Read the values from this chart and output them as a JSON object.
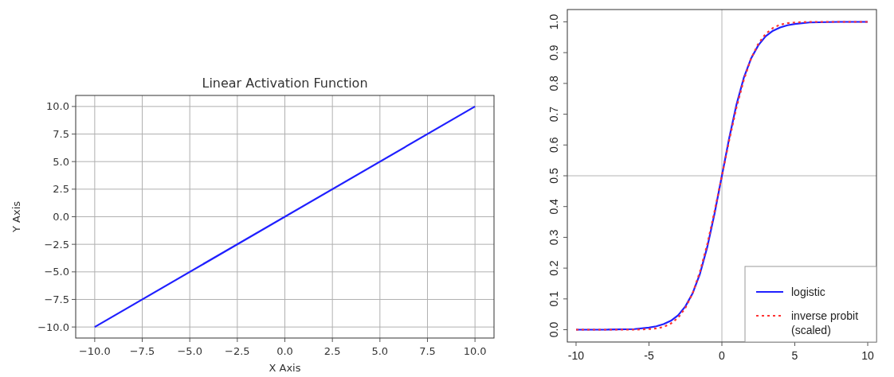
{
  "chart_data": [
    {
      "type": "line",
      "title": "Linear Activation Function",
      "xlabel": "X Axis",
      "ylabel": "Y Axis",
      "x": [
        -10,
        10
      ],
      "xlim": [
        -11,
        11
      ],
      "ylim": [
        -11,
        11
      ],
      "xticks": [
        {
          "value": -10,
          "label": "−10.0"
        },
        {
          "value": -7.5,
          "label": "−7.5"
        },
        {
          "value": -5,
          "label": "−5.0"
        },
        {
          "value": -2.5,
          "label": "−2.5"
        },
        {
          "value": 0,
          "label": "0.0"
        },
        {
          "value": 2.5,
          "label": "2.5"
        },
        {
          "value": 5,
          "label": "5.0"
        },
        {
          "value": 7.5,
          "label": "7.5"
        },
        {
          "value": 10,
          "label": "10.0"
        }
      ],
      "yticks": [
        {
          "value": -10,
          "label": "−10.0"
        },
        {
          "value": -7.5,
          "label": "−7.5"
        },
        {
          "value": -5,
          "label": "−5.0"
        },
        {
          "value": -2.5,
          "label": "−2.5"
        },
        {
          "value": 0,
          "label": "0.0"
        },
        {
          "value": 2.5,
          "label": "2.5"
        },
        {
          "value": 5,
          "label": "5.0"
        },
        {
          "value": 7.5,
          "label": "7.5"
        },
        {
          "value": 10,
          "label": "10.0"
        }
      ],
      "grid": true,
      "series": [
        {
          "color": "#1f1fff",
          "values": [
            -10,
            10
          ]
        }
      ]
    },
    {
      "type": "line",
      "x": [
        -10,
        -8,
        -6,
        -5,
        -4.5,
        -4,
        -3.5,
        -3,
        -2.5,
        -2,
        -1.5,
        -1,
        -0.5,
        0,
        0.5,
        1,
        1.5,
        2,
        2.5,
        3,
        3.5,
        4,
        4.5,
        5,
        6,
        8,
        10
      ],
      "xlim": [
        -10.6,
        10.6
      ],
      "ylim": [
        -0.04,
        1.04
      ],
      "xticks": [
        -10,
        -5,
        0,
        5,
        10
      ],
      "yticks": [
        {
          "value": 0,
          "label": "0.0"
        },
        {
          "value": 0.1,
          "label": "0.1"
        },
        {
          "value": 0.2,
          "label": "0.2"
        },
        {
          "value": 0.3,
          "label": "0.3"
        },
        {
          "value": 0.4,
          "label": "0.4"
        },
        {
          "value": 0.5,
          "label": "0.5"
        },
        {
          "value": 0.6,
          "label": "0.6"
        },
        {
          "value": 0.7,
          "label": "0.7"
        },
        {
          "value": 0.8,
          "label": "0.8"
        },
        {
          "value": 0.9,
          "label": "0.9"
        },
        {
          "value": 1,
          "label": "1.0"
        }
      ],
      "ref_lines": [
        {
          "axis": "x",
          "value": 0,
          "color": "#cccccc"
        },
        {
          "axis": "y",
          "value": 0.5,
          "color": "#cccccc"
        }
      ],
      "legend": "bottom right",
      "series": [
        {
          "name": "logistic",
          "color": "#2020ff",
          "line_style": "solid",
          "values": [
            0,
            0,
            0.002,
            0.007,
            0.011,
            0.018,
            0.029,
            0.047,
            0.076,
            0.119,
            0.182,
            0.269,
            0.378,
            0.5,
            0.622,
            0.731,
            0.818,
            0.881,
            0.924,
            0.953,
            0.971,
            0.982,
            0.989,
            0.993,
            0.998,
            1,
            1
          ]
        },
        {
          "name": "inverse probit\n(scaled)",
          "color": "#ff3333",
          "line_style": "dotted",
          "values": [
            0,
            0,
            0,
            0.002,
            0.004,
            0.009,
            0.02,
            0.039,
            0.071,
            0.119,
            0.189,
            0.278,
            0.385,
            0.5,
            0.615,
            0.722,
            0.811,
            0.881,
            0.929,
            0.961,
            0.98,
            0.991,
            0.996,
            0.998,
            1,
            1,
            1
          ]
        }
      ]
    }
  ]
}
